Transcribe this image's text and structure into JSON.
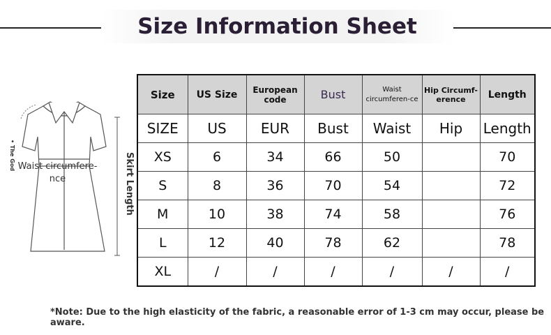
{
  "header": {
    "title": "Size Information Sheet"
  },
  "illustration": {
    "side_label": "• The God",
    "waist_label": "Waist circumfere-nce",
    "length_label": "Skirt Length"
  },
  "table": {
    "columns": [
      "Size",
      "US Size",
      "European code",
      "Bust",
      "Waist circumferen-ce",
      "Hip Circumf-erence",
      "Length"
    ],
    "rows": [
      [
        "SIZE",
        "US",
        "EUR",
        "Bust",
        "Waist",
        "Hip",
        "Length"
      ],
      [
        "XS",
        6,
        34,
        66,
        50,
        null,
        70
      ],
      [
        "S",
        8,
        36,
        70,
        54,
        null,
        72
      ],
      [
        "M",
        10,
        38,
        74,
        58,
        null,
        76
      ],
      [
        "L",
        12,
        40,
        78,
        62,
        null,
        78
      ],
      [
        "XL",
        "/",
        "/",
        "/",
        "/",
        "/",
        "/"
      ]
    ]
  },
  "note": "*Note: Due to the high elasticity of the fabric, a reasonable error of 1-3 cm may occur, please be aware."
}
